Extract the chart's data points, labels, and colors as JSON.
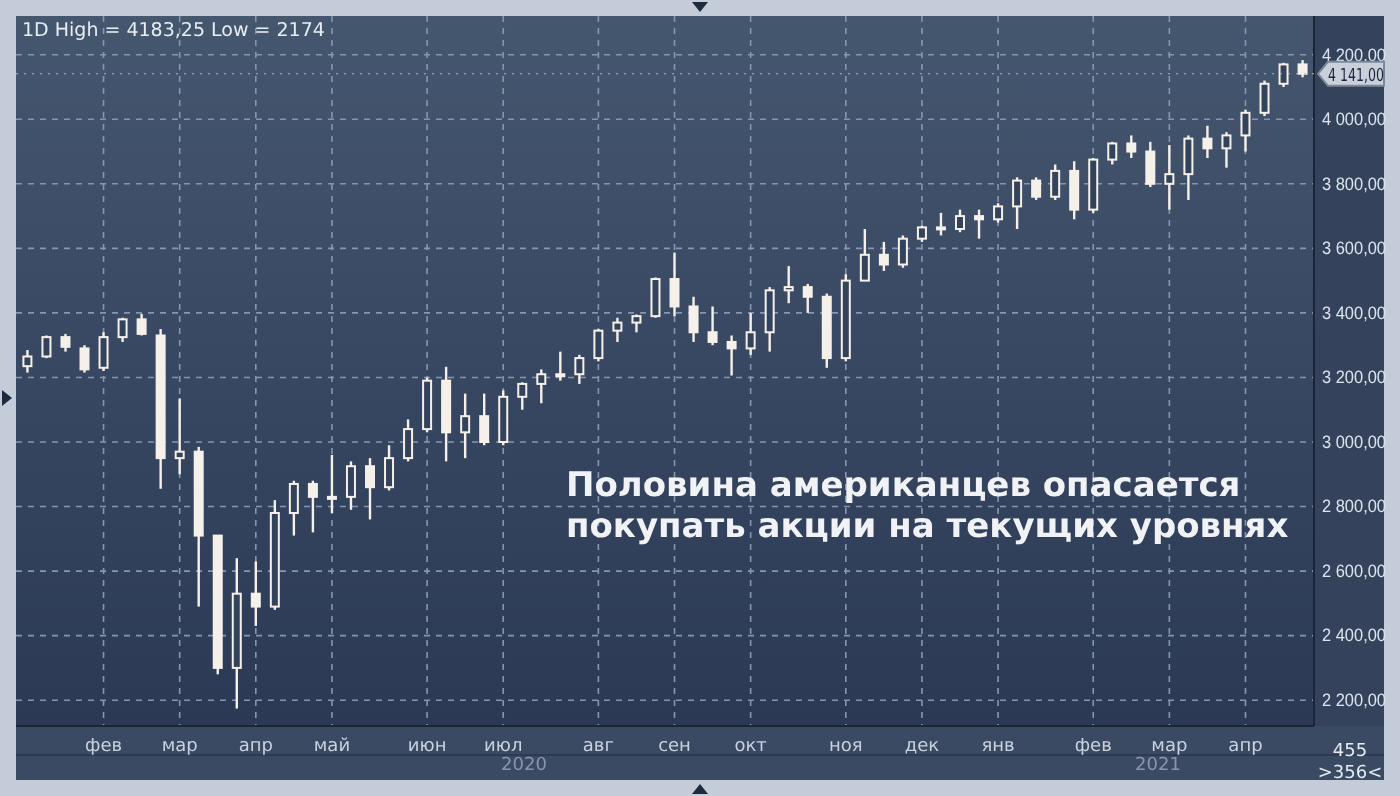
{
  "chart_data": {
    "type": "candlestick",
    "title": "1D High = 4183,25 Low = 2174",
    "categories": [
      null,
      null,
      null,
      null,
      "фев",
      null,
      null,
      null,
      "мар",
      null,
      null,
      null,
      "апр",
      null,
      null,
      null,
      "май",
      null,
      null,
      null,
      null,
      "июн",
      null,
      null,
      null,
      "июл",
      null,
      null,
      null,
      null,
      "авг",
      null,
      null,
      null,
      "сен",
      null,
      null,
      null,
      "окт",
      null,
      null,
      null,
      null,
      "ноя",
      null,
      null,
      null,
      "дек",
      null,
      null,
      null,
      "янв",
      null,
      null,
      null,
      null,
      "фев",
      null,
      null,
      null,
      "мар",
      null,
      null,
      null,
      "апр",
      null,
      null,
      null
    ],
    "ohlc": [
      [
        3235,
        3285,
        3215,
        3265
      ],
      [
        3265,
        3330,
        3260,
        3325
      ],
      [
        3325,
        3335,
        3280,
        3295
      ],
      [
        3290,
        3300,
        3215,
        3225
      ],
      [
        3230,
        3340,
        3220,
        3325
      ],
      [
        3325,
        3385,
        3310,
        3380
      ],
      [
        3380,
        3397,
        3330,
        3335
      ],
      [
        3330,
        3350,
        2855,
        2950
      ],
      [
        2950,
        3135,
        2900,
        2970
      ],
      [
        2970,
        2985,
        2490,
        2710
      ],
      [
        2710,
        2710,
        2280,
        2300
      ],
      [
        2300,
        2640,
        2174,
        2530
      ],
      [
        2530,
        2630,
        2430,
        2490
      ],
      [
        2490,
        2820,
        2480,
        2780
      ],
      [
        2780,
        2880,
        2710,
        2870
      ],
      [
        2870,
        2880,
        2720,
        2830
      ],
      [
        2830,
        2960,
        2780,
        2830
      ],
      [
        2830,
        2940,
        2790,
        2925
      ],
      [
        2925,
        2950,
        2760,
        2860
      ],
      [
        2860,
        2990,
        2850,
        2950
      ],
      [
        2950,
        3070,
        2940,
        3040
      ],
      [
        3040,
        3200,
        3030,
        3190
      ],
      [
        3190,
        3233,
        2940,
        3030
      ],
      [
        3030,
        3150,
        2950,
        3080
      ],
      [
        3080,
        3150,
        2990,
        3000
      ],
      [
        3000,
        3160,
        2990,
        3140
      ],
      [
        3140,
        3185,
        3100,
        3180
      ],
      [
        3180,
        3225,
        3120,
        3210
      ],
      [
        3210,
        3280,
        3190,
        3210
      ],
      [
        3210,
        3270,
        3180,
        3260
      ],
      [
        3260,
        3350,
        3250,
        3345
      ],
      [
        3345,
        3385,
        3310,
        3370
      ],
      [
        3370,
        3395,
        3340,
        3390
      ],
      [
        3390,
        3510,
        3385,
        3505
      ],
      [
        3505,
        3587,
        3390,
        3420
      ],
      [
        3420,
        3450,
        3310,
        3340
      ],
      [
        3340,
        3420,
        3300,
        3310
      ],
      [
        3310,
        3330,
        3206,
        3290
      ],
      [
        3290,
        3400,
        3270,
        3340
      ],
      [
        3340,
        3480,
        3280,
        3470
      ],
      [
        3470,
        3545,
        3430,
        3480
      ],
      [
        3480,
        3490,
        3400,
        3450
      ],
      [
        3450,
        3460,
        3230,
        3260
      ],
      [
        3260,
        3520,
        3250,
        3500
      ],
      [
        3500,
        3660,
        3500,
        3580
      ],
      [
        3580,
        3620,
        3530,
        3550
      ],
      [
        3550,
        3640,
        3540,
        3630
      ],
      [
        3630,
        3670,
        3620,
        3665
      ],
      [
        3665,
        3710,
        3640,
        3660
      ],
      [
        3660,
        3720,
        3650,
        3700
      ],
      [
        3700,
        3720,
        3630,
        3690
      ],
      [
        3690,
        3740,
        3680,
        3730
      ],
      [
        3730,
        3820,
        3660,
        3810
      ],
      [
        3810,
        3820,
        3750,
        3760
      ],
      [
        3760,
        3860,
        3750,
        3840
      ],
      [
        3840,
        3870,
        3690,
        3720
      ],
      [
        3720,
        3880,
        3710,
        3875
      ],
      [
        3875,
        3930,
        3860,
        3925
      ],
      [
        3925,
        3950,
        3880,
        3900
      ],
      [
        3900,
        3930,
        3790,
        3800
      ],
      [
        3800,
        3920,
        3720,
        3830
      ],
      [
        3830,
        3950,
        3750,
        3940
      ],
      [
        3940,
        3980,
        3880,
        3910
      ],
      [
        3910,
        3960,
        3850,
        3950
      ],
      [
        3950,
        4030,
        3900,
        4020
      ],
      [
        4020,
        4120,
        4010,
        4110
      ],
      [
        4110,
        4175,
        4100,
        4170
      ],
      [
        4170,
        4183.25,
        4130,
        4141
      ]
    ],
    "color": "#f6f0ea",
    "ylim": [
      2120,
      4320
    ],
    "yticks": [
      {
        "value": 2200,
        "label": "2 200,00"
      },
      {
        "value": 2400,
        "label": "2 400,00"
      },
      {
        "value": 2600,
        "label": "2 600,00"
      },
      {
        "value": 2800,
        "label": "2 800,00"
      },
      {
        "value": 3000,
        "label": "3 000,00"
      },
      {
        "value": 3200,
        "label": "3 200,00"
      },
      {
        "value": 3400,
        "label": "3 400,00"
      },
      {
        "value": 3600,
        "label": "3 600,00"
      },
      {
        "value": 3800,
        "label": "3 800,00"
      },
      {
        "value": 4000,
        "label": "4 000,00"
      },
      {
        "value": 4200,
        "label": "4 200,00"
      }
    ],
    "grid": true,
    "ref_lines": [
      {
        "axis": "y",
        "value": 4141,
        "label": "4 141,00"
      }
    ],
    "annotations": [
      "Половина американцев опасается\nпокупать акции на текущих уровнях",
      "2020",
      "2021",
      "455",
      ">356<"
    ]
  }
}
